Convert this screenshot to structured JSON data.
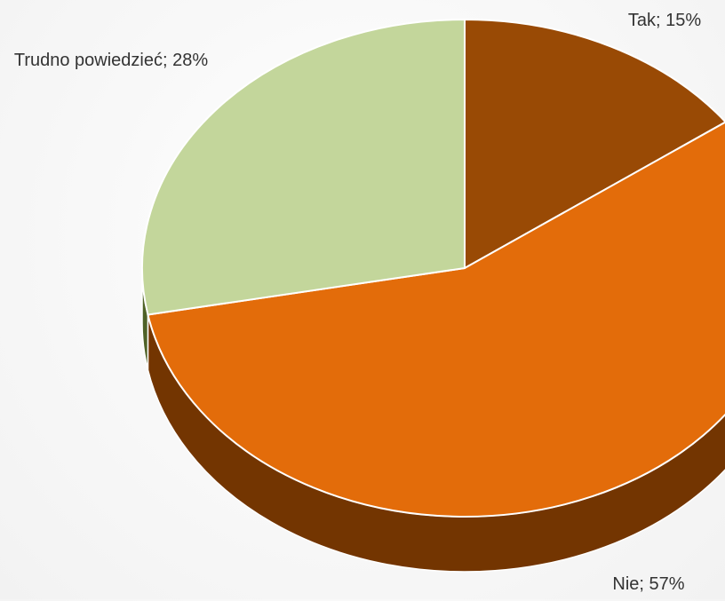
{
  "chart_data": {
    "type": "pie",
    "values": [
      15,
      57,
      28
    ],
    "value_labels": [
      "Tak; 15%",
      "Nie; 57%",
      "Trudno powiedzieć; 28%"
    ],
    "colors": [
      "#994a05",
      "#e36c0a",
      "#c3d69b"
    ],
    "side_colors": [
      "#5e2d02",
      "#733501",
      "#4f6228"
    ]
  }
}
